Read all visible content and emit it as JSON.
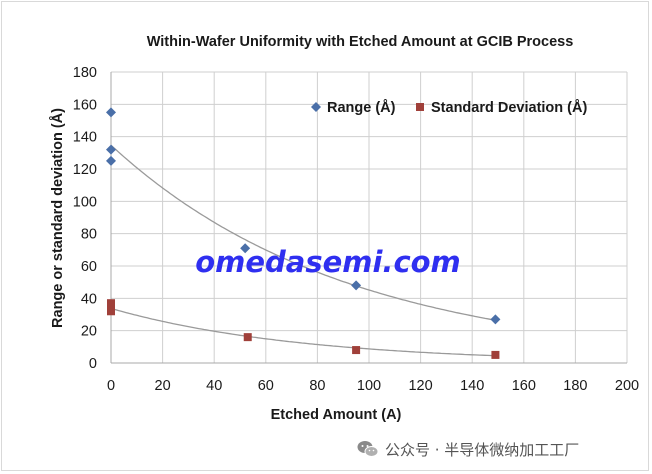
{
  "chart_data": {
    "type": "scatter",
    "title": "Within-Wafer Uniformity with Etched Amount at GCIB Process",
    "xlabel": "Etched Amount (A)",
    "ylabel": "Range or standard deviation (Å)",
    "xlim": [
      0,
      200
    ],
    "ylim": [
      0,
      180
    ],
    "xticks": [
      0,
      20,
      40,
      60,
      80,
      100,
      120,
      140,
      160,
      180,
      200
    ],
    "yticks": [
      0,
      20,
      40,
      60,
      80,
      100,
      120,
      140,
      160,
      180
    ],
    "grid": true,
    "legend_position": "top-right",
    "series": [
      {
        "name": "Range (Å)",
        "marker": "diamond",
        "color": "#4a6fa8",
        "points": [
          [
            0,
            155
          ],
          [
            0,
            132
          ],
          [
            0,
            125
          ],
          [
            52,
            71
          ],
          [
            95,
            48
          ],
          [
            149,
            27
          ]
        ],
        "trendline": "exponential"
      },
      {
        "name": "Standard Deviation (Å)",
        "marker": "square",
        "color": "#a0403a",
        "points": [
          [
            0,
            37
          ],
          [
            0,
            35
          ],
          [
            0,
            32
          ],
          [
            53,
            16
          ],
          [
            95,
            8
          ],
          [
            149,
            5
          ]
        ],
        "trendline": "exponential"
      }
    ],
    "trendline_color": "#9a9a9a"
  },
  "watermark": "omedasemi.com",
  "credit": {
    "icon": "wechat-icon",
    "text": "公众号 · 半导体微纳加工工厂"
  }
}
